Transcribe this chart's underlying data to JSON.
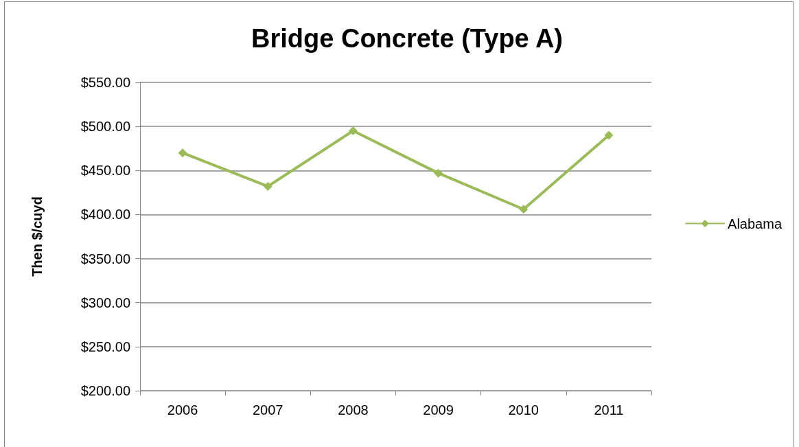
{
  "chart_data": {
    "type": "line",
    "title": "Bridge Concrete (Type A)",
    "ylabel": "Then $/cuyd",
    "categories": [
      "2006",
      "2007",
      "2008",
      "2009",
      "2010",
      "2011"
    ],
    "series": [
      {
        "name": "Alabama",
        "color": "#9bbb59",
        "values": [
          470,
          432,
          495,
          447,
          406,
          490
        ]
      }
    ],
    "ylim": [
      200,
      550
    ],
    "yticks": [
      {
        "value": 200,
        "label": "$200.00"
      },
      {
        "value": 250,
        "label": "$250.00"
      },
      {
        "value": 300,
        "label": "$300.00"
      },
      {
        "value": 350,
        "label": "$350.00"
      },
      {
        "value": 400,
        "label": "$400.00"
      },
      {
        "value": 450,
        "label": "$450.00"
      },
      {
        "value": 500,
        "label": "$500.00"
      },
      {
        "value": 550,
        "label": "$550.00"
      }
    ],
    "grid": "y",
    "legend": "right",
    "marker": "diamond",
    "line_style": "solid"
  }
}
